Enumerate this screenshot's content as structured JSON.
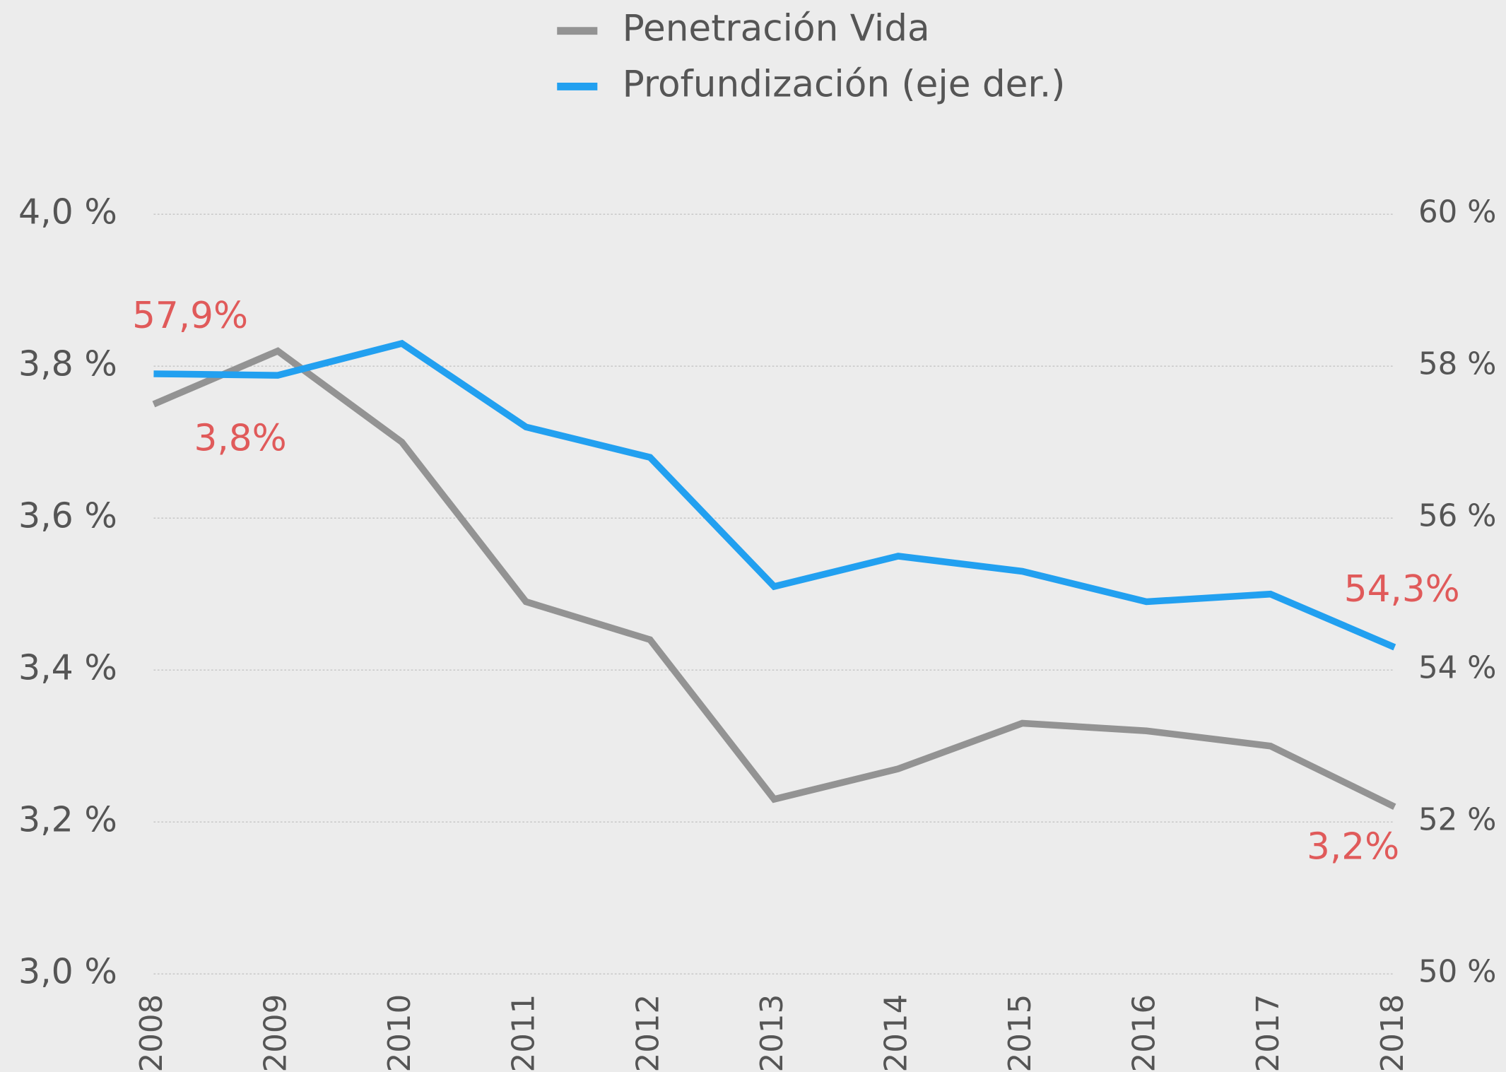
{
  "chart_data": {
    "type": "line",
    "categories": [
      "2008",
      "2009",
      "2010",
      "2011",
      "2012",
      "2013",
      "2014",
      "2015",
      "2016",
      "2017",
      "2018"
    ],
    "series": [
      {
        "name": "Penetración Vida",
        "color": "#939393",
        "values": [
          3.75,
          3.82,
          3.7,
          3.49,
          3.44,
          3.23,
          3.27,
          3.33,
          3.32,
          3.3,
          3.22
        ],
        "value_labels": [
          "3,8%",
          null,
          null,
          null,
          null,
          null,
          null,
          null,
          null,
          null,
          "3,2%"
        ]
      },
      {
        "name": "Profundización (eje der.)",
        "color": "#22a0f0",
        "axis": "y2",
        "values": [
          57.9,
          57.88,
          58.3,
          57.2,
          56.8,
          55.1,
          55.5,
          55.3,
          54.9,
          55.0,
          54.3
        ],
        "value_labels": [
          "57,9%",
          null,
          null,
          null,
          null,
          null,
          null,
          null,
          null,
          null,
          "54,3%"
        ]
      }
    ],
    "ylim": [
      3.0,
      4.0
    ],
    "yticks": [
      {
        "value": 3.0,
        "label": "3,0 %"
      },
      {
        "value": 3.2,
        "label": "3,2 %"
      },
      {
        "value": 3.4,
        "label": "3,4 %"
      },
      {
        "value": 3.6,
        "label": "3,6 %"
      },
      {
        "value": 3.8,
        "label": "3,8 %"
      },
      {
        "value": 4.0,
        "label": "4,0 %"
      }
    ],
    "y2lim": [
      50,
      60
    ],
    "y2ticks": [
      {
        "value": 50,
        "label": "50 %"
      },
      {
        "value": 52,
        "label": "52 %"
      },
      {
        "value": 54,
        "label": "54 %"
      },
      {
        "value": 56,
        "label": "56 %"
      },
      {
        "value": 58,
        "label": "58 %"
      },
      {
        "value": 60,
        "label": "60 %"
      }
    ],
    "grid": true,
    "legend": "top",
    "label_color": "#e05a5a"
  }
}
